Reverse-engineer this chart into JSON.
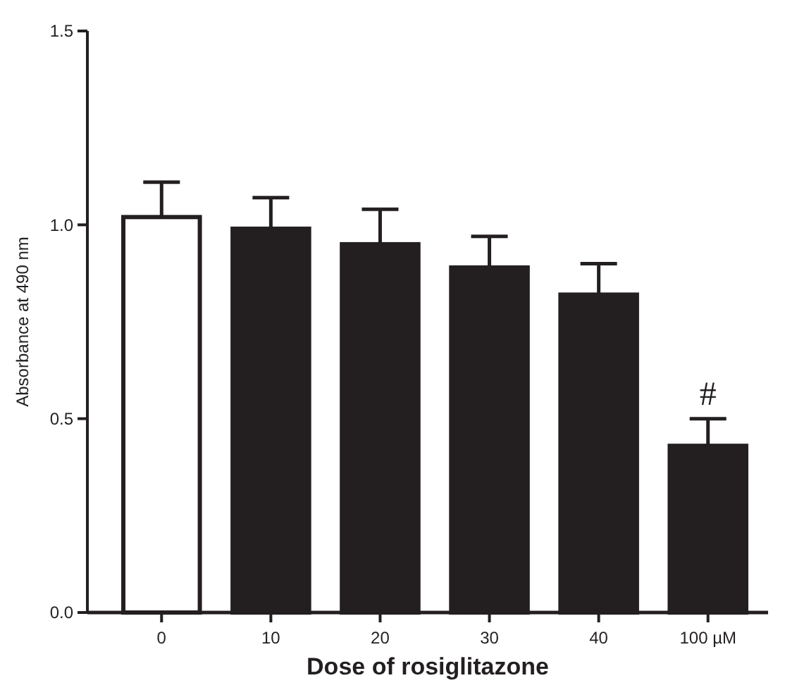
{
  "chart_data": {
    "type": "bar",
    "xlabel": "Dose of rosiglitazone",
    "ylabel": "Absorbance at 490 nm",
    "categories": [
      "0",
      "10",
      "20",
      "30",
      "40",
      "100 µM"
    ],
    "values": [
      1.02,
      0.99,
      0.95,
      0.89,
      0.82,
      0.43
    ],
    "errors": [
      [
        1.02,
        1.11
      ],
      [
        0.99,
        1.07
      ],
      [
        0.95,
        1.04
      ],
      [
        0.89,
        0.97
      ],
      [
        0.82,
        0.9
      ],
      [
        0.43,
        0.5
      ]
    ],
    "colors": [
      "#ffffff",
      "#231f20",
      "#231f20",
      "#231f20",
      "#231f20",
      "#231f20"
    ],
    "ylim": [
      0,
      1.5
    ],
    "yticks": [
      {
        "value": 0,
        "label": "0.0"
      },
      {
        "value": 0.5,
        "label": "0.5"
      },
      {
        "value": 1,
        "label": "1.0"
      },
      {
        "value": 1.5,
        "label": "1.5"
      }
    ],
    "annotations": [
      {
        "text": "#",
        "x": "100 µM",
        "y": 0.5
      }
    ]
  }
}
